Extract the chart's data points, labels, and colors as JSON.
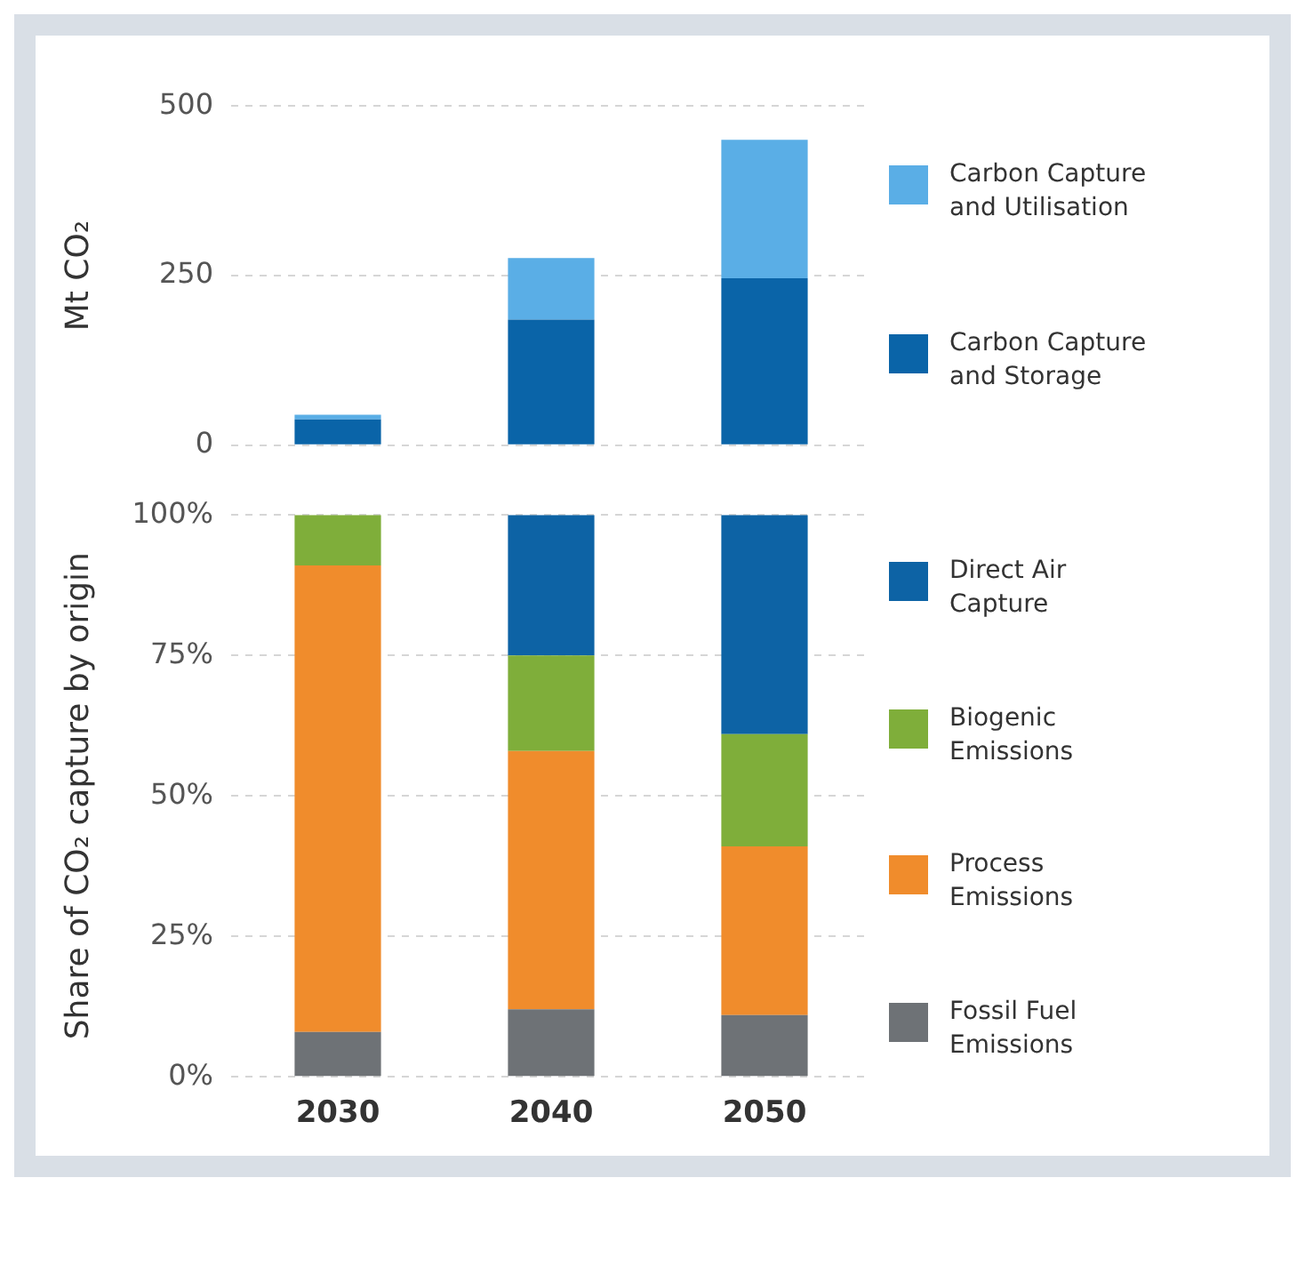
{
  "chart_data": [
    {
      "type": "bar",
      "ylabel": "Mt CO₂",
      "categories": [
        "2030",
        "2040",
        "2050"
      ],
      "stacked": true,
      "ylim": [
        0,
        500
      ],
      "yticks": [
        0,
        250,
        500
      ],
      "grid": "y",
      "legend": "right",
      "tick_labels": "y",
      "series": [
        {
          "name": "Carbon Capture and Storage",
          "color": "#0a64a8",
          "values": [
            38,
            185,
            246
          ]
        },
        {
          "name": "Carbon Capture and Utilisation",
          "color": "#5aaee6",
          "values": [
            7,
            91,
            204
          ]
        }
      ]
    },
    {
      "type": "bar",
      "ylabel": "Share of CO₂ capture by origin",
      "categories": [
        "2030",
        "2040",
        "2050"
      ],
      "stacked": true,
      "ylim": [
        0,
        100
      ],
      "yticks": [
        {
          "value": 0,
          "label": "0%"
        },
        {
          "value": 25,
          "label": "25%"
        },
        {
          "value": 50,
          "label": "50%"
        },
        {
          "value": 75,
          "label": "75%"
        },
        {
          "value": 100,
          "label": "100%"
        }
      ],
      "grid": "y",
      "legend": "right",
      "series": [
        {
          "name": "Fossil Fuel Emissions",
          "color": "#6e7276",
          "values": [
            8,
            12,
            11
          ]
        },
        {
          "name": "Process Emissions",
          "color": "#f08c2c",
          "values": [
            83,
            46,
            30
          ]
        },
        {
          "name": "Biogenic Emissions",
          "color": "#7fae3a",
          "values": [
            9,
            17,
            20
          ]
        },
        {
          "name": "Direct Air Capture",
          "color": "#0d63a5",
          "values": [
            0,
            25,
            39
          ]
        }
      ]
    }
  ]
}
